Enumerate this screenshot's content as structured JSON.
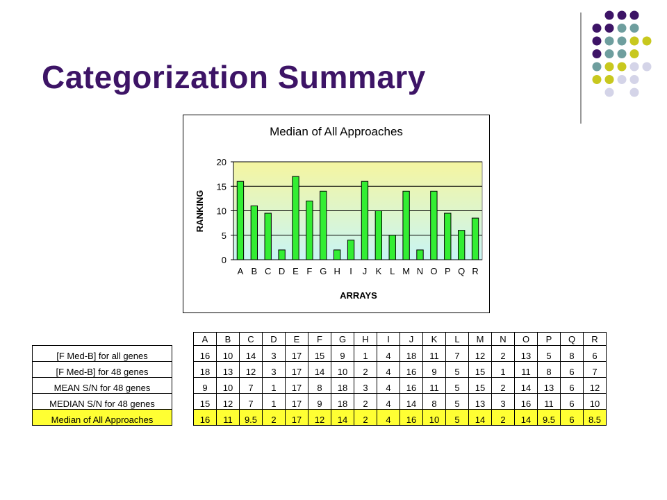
{
  "slide": {
    "title": "Categorization Summary",
    "colors": {
      "title": "#3d1466",
      "dot_purple": "#3d1466",
      "dot_teal": "#6e9e9e",
      "dot_olive": "#c8c81e",
      "dot_lavender": "#d4d4e8"
    }
  },
  "chart_data": {
    "type": "bar",
    "title": "Median of All Approaches",
    "xlabel": "ARRAYS",
    "ylabel": "RANKING",
    "categories": [
      "A",
      "B",
      "C",
      "D",
      "E",
      "F",
      "G",
      "H",
      "I",
      "J",
      "K",
      "L",
      "M",
      "N",
      "O",
      "P",
      "Q",
      "R"
    ],
    "values": [
      16,
      11,
      9.5,
      2,
      17,
      12,
      14,
      2,
      4,
      16,
      10,
      5,
      14,
      2,
      14,
      9.5,
      6,
      8.5
    ],
    "ylim": [
      0,
      20
    ],
    "yticks": [
      0,
      5,
      10,
      15,
      20
    ],
    "grid": true,
    "legend": "none",
    "colors": {
      "bar": "#33ee33",
      "plot_bg_top": "#f5f5a0",
      "plot_bg_bottom": "#c8f5f5"
    }
  },
  "table": {
    "columns": [
      "A",
      "B",
      "C",
      "D",
      "E",
      "F",
      "G",
      "H",
      "I",
      "J",
      "K",
      "L",
      "M",
      "N",
      "O",
      "P",
      "Q",
      "R"
    ],
    "rows": [
      {
        "label": "[F Med-B] for all genes",
        "values": [
          "16",
          "10",
          "14",
          "3",
          "17",
          "15",
          "9",
          "1",
          "4",
          "18",
          "11",
          "7",
          "12",
          "2",
          "13",
          "5",
          "8",
          "6"
        ]
      },
      {
        "label": "[F Med-B] for 48 genes",
        "values": [
          "18",
          "13",
          "12",
          "3",
          "17",
          "14",
          "10",
          "2",
          "4",
          "16",
          "9",
          "5",
          "15",
          "1",
          "11",
          "8",
          "6",
          "7"
        ]
      },
      {
        "label": "MEAN S/N for 48 genes",
        "values": [
          "9",
          "10",
          "7",
          "1",
          "17",
          "8",
          "18",
          "3",
          "4",
          "16",
          "11",
          "5",
          "15",
          "2",
          "14",
          "13",
          "6",
          "12"
        ]
      },
      {
        "label": "MEDIAN S/N for 48 genes",
        "values": [
          "15",
          "12",
          "7",
          "1",
          "17",
          "9",
          "18",
          "2",
          "4",
          "14",
          "8",
          "5",
          "13",
          "3",
          "16",
          "11",
          "6",
          "10"
        ]
      },
      {
        "label": "Median of All Approaches",
        "values": [
          "16",
          "11",
          "9.5",
          "2",
          "17",
          "12",
          "14",
          "2",
          "4",
          "16",
          "10",
          "5",
          "14",
          "2",
          "14",
          "9.5",
          "6",
          "8.5"
        ],
        "highlight": true
      }
    ],
    "colors": {
      "highlight": "#ffff33"
    }
  }
}
